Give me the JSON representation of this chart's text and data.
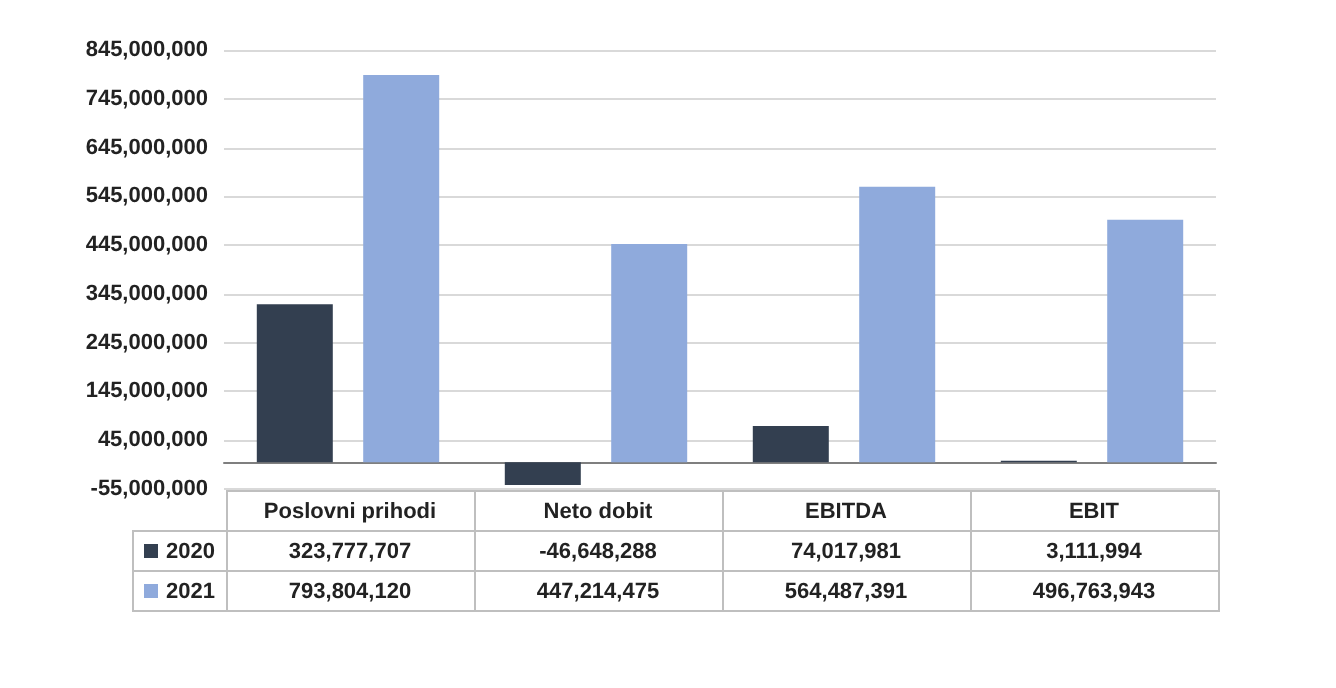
{
  "chart_data": {
    "type": "bar",
    "categories": [
      "Poslovni prihodi",
      "Neto dobit",
      "EBITDA",
      "EBIT"
    ],
    "series": [
      {
        "name": "2020",
        "color": "#333f50",
        "values": [
          323777707,
          -46648288,
          74017981,
          3111994
        ],
        "value_labels": [
          "323,777,707",
          "-46,648,288",
          "74,017,981",
          "3,111,994"
        ]
      },
      {
        "name": "2021",
        "color": "#8faadc",
        "values": [
          793804120,
          447214475,
          564487391,
          496763943
        ],
        "value_labels": [
          "793,804,120",
          "447,214,475",
          "564,487,391",
          "496,763,943"
        ]
      }
    ],
    "ylim": [
      -55000000,
      845000000
    ],
    "yticks": [
      {
        "value": -55000000,
        "label": "-55,000,000"
      },
      {
        "value": 45000000,
        "label": "45,000,000"
      },
      {
        "value": 145000000,
        "label": "145,000,000"
      },
      {
        "value": 245000000,
        "label": "245,000,000"
      },
      {
        "value": 345000000,
        "label": "345,000,000"
      },
      {
        "value": 445000000,
        "label": "445,000,000"
      },
      {
        "value": 545000000,
        "label": "545,000,000"
      },
      {
        "value": 645000000,
        "label": "645,000,000"
      },
      {
        "value": 745000000,
        "label": "745,000,000"
      },
      {
        "value": 845000000,
        "label": "845,000,000"
      }
    ],
    "grid": "y",
    "legend": "bottom"
  }
}
